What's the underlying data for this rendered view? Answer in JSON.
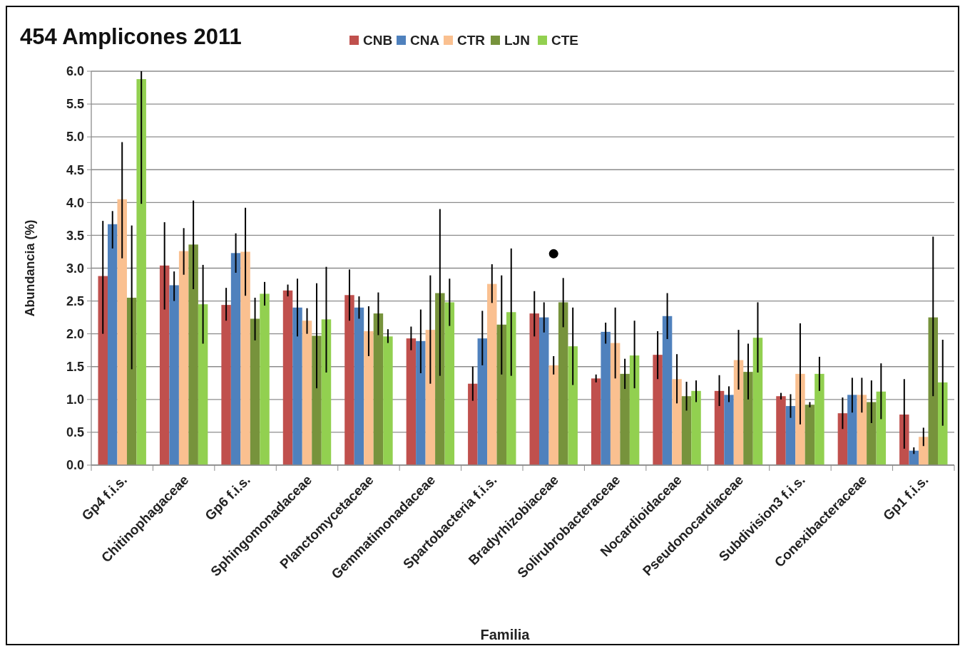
{
  "chart_data": {
    "type": "bar",
    "title": "454 Amplicones 2011",
    "xlabel": "Familia",
    "ylabel": "Abundancia (%)",
    "categories": [
      "Gp4 f.i.s.",
      "Chitinophagaceae",
      "Gp6 f.i.s.",
      "Sphingomonadaceae",
      "Planctomycetaceae",
      "Gemmatimonadaceae",
      "Spartobacteria f.i.s.",
      "Bradyrhizobiaceae",
      "Solirubrobacteraceae",
      "Nocardioidaceae",
      "Pseudonocardiaceae",
      "Subdivision3 f.i.s.",
      "Conexibacteraceae",
      "Gp1 f.i.s."
    ],
    "series": [
      {
        "name": "CNB",
        "color": "#c0504d",
        "values": [
          2.88,
          3.04,
          2.44,
          2.66,
          2.59,
          1.93,
          1.24,
          2.31,
          1.32,
          1.68,
          1.13,
          1.05,
          0.79,
          0.77
        ],
        "errors": [
          [
            2.0,
            3.72
          ],
          [
            2.37,
            3.7
          ],
          [
            2.2,
            2.7
          ],
          [
            2.57,
            2.75
          ],
          [
            2.2,
            2.98
          ],
          [
            1.75,
            2.11
          ],
          [
            0.98,
            1.5
          ],
          [
            1.96,
            2.65
          ],
          [
            1.26,
            1.38
          ],
          [
            1.31,
            2.04
          ],
          [
            0.9,
            1.37
          ],
          [
            1.0,
            1.1
          ],
          [
            0.55,
            1.03
          ],
          [
            0.25,
            1.31
          ]
        ]
      },
      {
        "name": "CNA",
        "color": "#4f81bd",
        "values": [
          3.67,
          2.74,
          3.23,
          2.4,
          2.4,
          1.89,
          1.93,
          2.25,
          2.03,
          2.27,
          1.07,
          0.9,
          1.07,
          0.22
        ],
        "errors": [
          [
            3.3,
            3.87
          ],
          [
            2.5,
            2.95
          ],
          [
            2.93,
            3.53
          ],
          [
            1.96,
            2.84
          ],
          [
            2.23,
            2.57
          ],
          [
            1.4,
            2.37
          ],
          [
            1.52,
            2.35
          ],
          [
            2.02,
            2.48
          ],
          [
            1.85,
            2.17
          ],
          [
            1.92,
            2.62
          ],
          [
            0.96,
            1.2
          ],
          [
            0.72,
            1.08
          ],
          [
            0.8,
            1.33
          ],
          [
            0.17,
            0.27
          ]
        ]
      },
      {
        "name": "CTR",
        "color": "#fac090",
        "values": [
          4.05,
          3.26,
          3.25,
          2.2,
          2.04,
          2.06,
          2.76,
          1.52,
          1.86,
          1.31,
          1.6,
          1.39,
          1.07,
          0.43
        ],
        "errors": [
          [
            3.15,
            4.92
          ],
          [
            2.9,
            3.61
          ],
          [
            2.58,
            3.92
          ],
          [
            2.0,
            2.39
          ],
          [
            1.66,
            2.42
          ],
          [
            1.24,
            2.89
          ],
          [
            2.47,
            3.06
          ],
          [
            1.38,
            1.66
          ],
          [
            1.32,
            2.4
          ],
          [
            0.94,
            1.69
          ],
          [
            1.15,
            2.06
          ],
          [
            0.62,
            2.16
          ],
          [
            0.8,
            1.33
          ],
          [
            0.29,
            0.57
          ]
        ]
      },
      {
        "name": "LJN",
        "color": "#77933c",
        "values": [
          2.55,
          3.36,
          2.23,
          1.97,
          2.31,
          2.62,
          2.14,
          2.48,
          1.39,
          1.05,
          1.42,
          0.92,
          0.96,
          2.25
        ],
        "errors": [
          [
            1.46,
            3.65
          ],
          [
            2.68,
            4.03
          ],
          [
            1.9,
            2.55
          ],
          [
            1.17,
            2.77
          ],
          [
            1.98,
            2.63
          ],
          [
            1.36,
            3.9
          ],
          [
            1.38,
            2.89
          ],
          [
            2.1,
            2.85
          ],
          [
            1.16,
            1.62
          ],
          [
            0.83,
            1.27
          ],
          [
            1.0,
            1.85
          ],
          [
            0.88,
            0.96
          ],
          [
            0.64,
            1.29
          ],
          [
            1.05,
            3.48
          ]
        ]
      },
      {
        "name": "CTE",
        "color": "#92d050",
        "values": [
          5.88,
          2.45,
          2.61,
          2.22,
          1.96,
          2.48,
          2.33,
          1.81,
          1.67,
          1.13,
          1.94,
          1.39,
          1.12,
          1.26
        ],
        "errors": [
          [
            3.98,
            6.0
          ],
          [
            1.85,
            3.05
          ],
          [
            2.43,
            2.79
          ],
          [
            1.41,
            3.02
          ],
          [
            1.86,
            2.07
          ],
          [
            2.12,
            2.84
          ],
          [
            1.36,
            3.3
          ],
          [
            1.22,
            2.4
          ],
          [
            1.17,
            2.2
          ],
          [
            0.96,
            1.29
          ],
          [
            1.41,
            2.48
          ],
          [
            1.13,
            1.65
          ],
          [
            0.7,
            1.55
          ],
          [
            0.6,
            1.91
          ]
        ]
      },
      {
        "type": "scatter",
        "color": "#000000",
        "x": [
          "Bradyrhizobiaceae"
        ],
        "values": [
          3.22
        ],
        "marker": "circle"
      }
    ],
    "ylim": [
      0,
      6
    ],
    "yticks": [
      {
        "value": 0,
        "label": "0.0"
      },
      {
        "value": 0.5,
        "label": "0.5"
      },
      {
        "value": 1,
        "label": "1.0"
      },
      {
        "value": 1.5,
        "label": "1.5"
      },
      {
        "value": 2,
        "label": "2.0"
      },
      {
        "value": 2.5,
        "label": "2.5"
      },
      {
        "value": 3,
        "label": "3.0"
      },
      {
        "value": 3.5,
        "label": "3.5"
      },
      {
        "value": 4,
        "label": "4.0"
      },
      {
        "value": 4.5,
        "label": "4.5"
      },
      {
        "value": 5,
        "label": "5.0"
      },
      {
        "value": 5.5,
        "label": "5.5"
      },
      {
        "value": 6,
        "label": "6.0"
      }
    ],
    "grid": "y",
    "legend": "top"
  }
}
